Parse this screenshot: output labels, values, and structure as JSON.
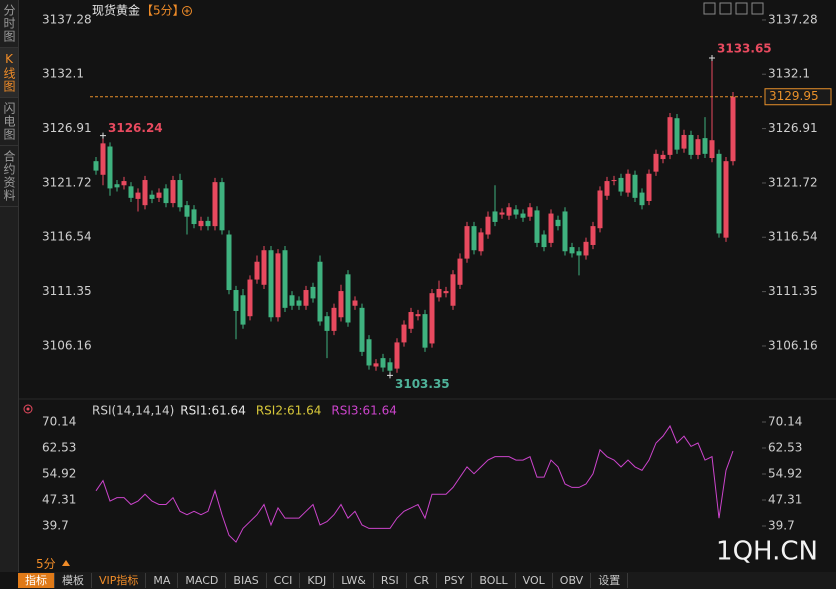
{
  "ui": {
    "sidebar_tabs": [
      "分时图",
      "K线图",
      "闪电图",
      "合约资料"
    ],
    "active_tab": 1,
    "symbol": "现货黄金",
    "period": "【5分】",
    "period_switch": "5分",
    "toolbar": [
      "指标",
      "模板",
      "VIP指标",
      "MA",
      "MACD",
      "BIAS",
      "CCI",
      "KDJ",
      "LW&",
      "RSI",
      "CR",
      "PSY",
      "BOLL",
      "VOL",
      "OBV",
      "设置"
    ],
    "watermark": "1QH.CN"
  },
  "chart_data": [
    {
      "type": "candlestick",
      "up_color": "#e84a5f",
      "down_color": "#3fb27f",
      "last_price_color": "#e8902a",
      "ylim": [
        3101.48,
        3138.23
      ],
      "yticks": [
        3137.28,
        3132.1,
        3126.91,
        3121.72,
        3116.54,
        3111.35,
        3106.16
      ],
      "open": [
        3123.8,
        3122.5,
        3125.2,
        3121.6,
        3121.5,
        3121.4,
        3120.2,
        3119.6,
        3120.6,
        3120.3,
        3121.2,
        3119.8,
        3122.0,
        3119.6,
        3119.2,
        3117.6,
        3118.1,
        3117.6,
        3121.8,
        3116.8,
        3111.5,
        3111.0,
        3109.0,
        3112.5,
        3112.0,
        3115.3,
        3108.9,
        3115.3,
        3111.0,
        3110.5,
        3110.0,
        3111.8,
        3114.2,
        3109.0,
        3107.6,
        3108.9,
        3113.0,
        3110.0,
        3109.8,
        3106.8,
        3104.2,
        3105.0,
        3104.6,
        3104.0,
        3106.5,
        3107.8,
        3109.0,
        3109.2,
        3106.4,
        3110.8,
        3111.2,
        3110.0,
        3112.0,
        3114.5,
        3117.6,
        3115.2,
        3116.8,
        3119.0,
        3118.7,
        3118.6,
        3119.2,
        3118.8,
        3118.5,
        3119.1,
        3116.8,
        3116.0,
        3118.2,
        3119.0,
        3115.6,
        3115.2,
        3114.8,
        3115.8,
        3117.4,
        3120.5,
        3121.9,
        3122.2,
        3120.8,
        3122.5,
        3120.8,
        3120.0,
        3122.8,
        3124.0,
        3124.4,
        3127.9,
        3125.0,
        3126.3,
        3124.4,
        3126.0,
        3124.1,
        3124.5,
        3116.5,
        3123.8
      ],
      "high": [
        3124.2,
        3126.24,
        3125.6,
        3122.0,
        3122.3,
        3121.8,
        3121.2,
        3122.4,
        3121.0,
        3121.2,
        3121.6,
        3122.4,
        3122.6,
        3120.0,
        3119.6,
        3118.5,
        3118.5,
        3122.2,
        3122.2,
        3117.2,
        3111.9,
        3111.6,
        3112.9,
        3114.8,
        3115.7,
        3115.7,
        3115.4,
        3115.7,
        3111.4,
        3110.9,
        3111.9,
        3112.2,
        3114.8,
        3109.4,
        3110.2,
        3112.0,
        3113.4,
        3110.9,
        3110.2,
        3107.2,
        3104.9,
        3105.4,
        3105.0,
        3106.9,
        3108.6,
        3109.8,
        3109.6,
        3109.6,
        3111.6,
        3112.4,
        3111.8,
        3113.4,
        3115.0,
        3118.0,
        3118.0,
        3117.4,
        3119.0,
        3121.5,
        3119.3,
        3119.8,
        3119.6,
        3119.2,
        3119.8,
        3119.5,
        3117.2,
        3119.2,
        3118.6,
        3119.4,
        3116.0,
        3115.6,
        3116.5,
        3118.0,
        3121.4,
        3122.3,
        3122.4,
        3122.6,
        3123.0,
        3122.9,
        3121.2,
        3123.0,
        3124.9,
        3124.8,
        3128.4,
        3128.3,
        3126.8,
        3126.7,
        3126.3,
        3128.0,
        3133.65,
        3124.9,
        3124.2,
        3130.4
      ],
      "low": [
        3122.5,
        3121.5,
        3120.5,
        3120.9,
        3121.1,
        3119.9,
        3119.0,
        3119.2,
        3119.8,
        3119.9,
        3119.4,
        3119.4,
        3119.0,
        3116.8,
        3117.4,
        3117.2,
        3117.2,
        3117.2,
        3116.8,
        3111.1,
        3106.8,
        3107.8,
        3108.6,
        3112.1,
        3111.6,
        3108.5,
        3108.5,
        3109.4,
        3109.6,
        3109.6,
        3109.6,
        3110.3,
        3108.1,
        3105.0,
        3107.2,
        3108.5,
        3108.0,
        3109.6,
        3105.2,
        3103.9,
        3103.8,
        3103.7,
        3103.35,
        3103.6,
        3106.1,
        3107.4,
        3108.6,
        3105.6,
        3106.0,
        3110.4,
        3110.8,
        3109.6,
        3111.6,
        3114.1,
        3114.9,
        3114.8,
        3116.4,
        3117.6,
        3118.3,
        3118.2,
        3118.3,
        3118.0,
        3118.1,
        3115.6,
        3115.2,
        3115.6,
        3117.2,
        3114.8,
        3114.6,
        3112.9,
        3114.4,
        3115.4,
        3117.0,
        3120.1,
        3121.5,
        3120.5,
        3120.4,
        3119.9,
        3119.2,
        3119.6,
        3122.4,
        3123.6,
        3124.0,
        3124.5,
        3124.6,
        3124.0,
        3124.0,
        3124.1,
        3123.7,
        3116.5,
        3116.1,
        3123.4
      ],
      "close": [
        3122.9,
        3125.5,
        3121.2,
        3121.3,
        3121.9,
        3120.3,
        3120.8,
        3122.0,
        3120.2,
        3120.8,
        3119.8,
        3122.0,
        3119.4,
        3118.5,
        3117.8,
        3118.1,
        3117.6,
        3121.8,
        3117.2,
        3111.5,
        3109.5,
        3108.2,
        3112.5,
        3114.2,
        3115.3,
        3108.9,
        3115.0,
        3109.8,
        3110.0,
        3110.0,
        3111.5,
        3110.7,
        3108.5,
        3107.6,
        3109.8,
        3111.4,
        3108.4,
        3110.5,
        3105.6,
        3104.3,
        3104.5,
        3104.1,
        3103.8,
        3106.5,
        3108.2,
        3109.4,
        3109.2,
        3106.0,
        3111.2,
        3111.6,
        3111.4,
        3113.0,
        3114.5,
        3117.6,
        3115.3,
        3117.0,
        3118.5,
        3118.0,
        3118.9,
        3119.4,
        3118.7,
        3118.4,
        3119.4,
        3116.0,
        3115.6,
        3118.8,
        3117.6,
        3115.2,
        3115.0,
        3114.8,
        3116.1,
        3117.6,
        3121.0,
        3121.9,
        3122.0,
        3120.9,
        3122.6,
        3120.3,
        3119.6,
        3122.6,
        3124.5,
        3124.4,
        3128.0,
        3124.9,
        3126.3,
        3124.4,
        3125.9,
        3124.5,
        3125.8,
        3116.9,
        3123.8,
        3129.95
      ]
    },
    {
      "type": "line",
      "indicator": "RSI(14,14,14)",
      "legend": [
        {
          "label": "RSI1:61.64",
          "color": "#e6e6e6"
        },
        {
          "label": "RSI2:61.64",
          "color": "#d8c83a"
        },
        {
          "label": "RSI3:61.64",
          "color": "#cc44cc"
        }
      ],
      "ylim": [
        34.14,
        75.12
      ],
      "yticks": [
        70.14,
        62.53,
        54.92,
        47.31,
        39.7
      ],
      "series": [
        {
          "color": "#cc44cc",
          "values": [
            50,
            53,
            47,
            48,
            48,
            46,
            47,
            49,
            47,
            46,
            46,
            48,
            44,
            43,
            44,
            43,
            44,
            50,
            43,
            37,
            35,
            39,
            41,
            43,
            46,
            40,
            45,
            42,
            42,
            42,
            44,
            46,
            40,
            41,
            43,
            46,
            42,
            44,
            40,
            39,
            39,
            39,
            39,
            42,
            44,
            45,
            46,
            42,
            49,
            49,
            49,
            51,
            54,
            57,
            55,
            57,
            59,
            60,
            60,
            60,
            59,
            59,
            60,
            54,
            54,
            59,
            57,
            52,
            51,
            51,
            52,
            55,
            62,
            60,
            59,
            57,
            59,
            57,
            56,
            59,
            64,
            66,
            69,
            64,
            66,
            63,
            64,
            59,
            60,
            42,
            56,
            61.64
          ]
        }
      ]
    }
  ]
}
